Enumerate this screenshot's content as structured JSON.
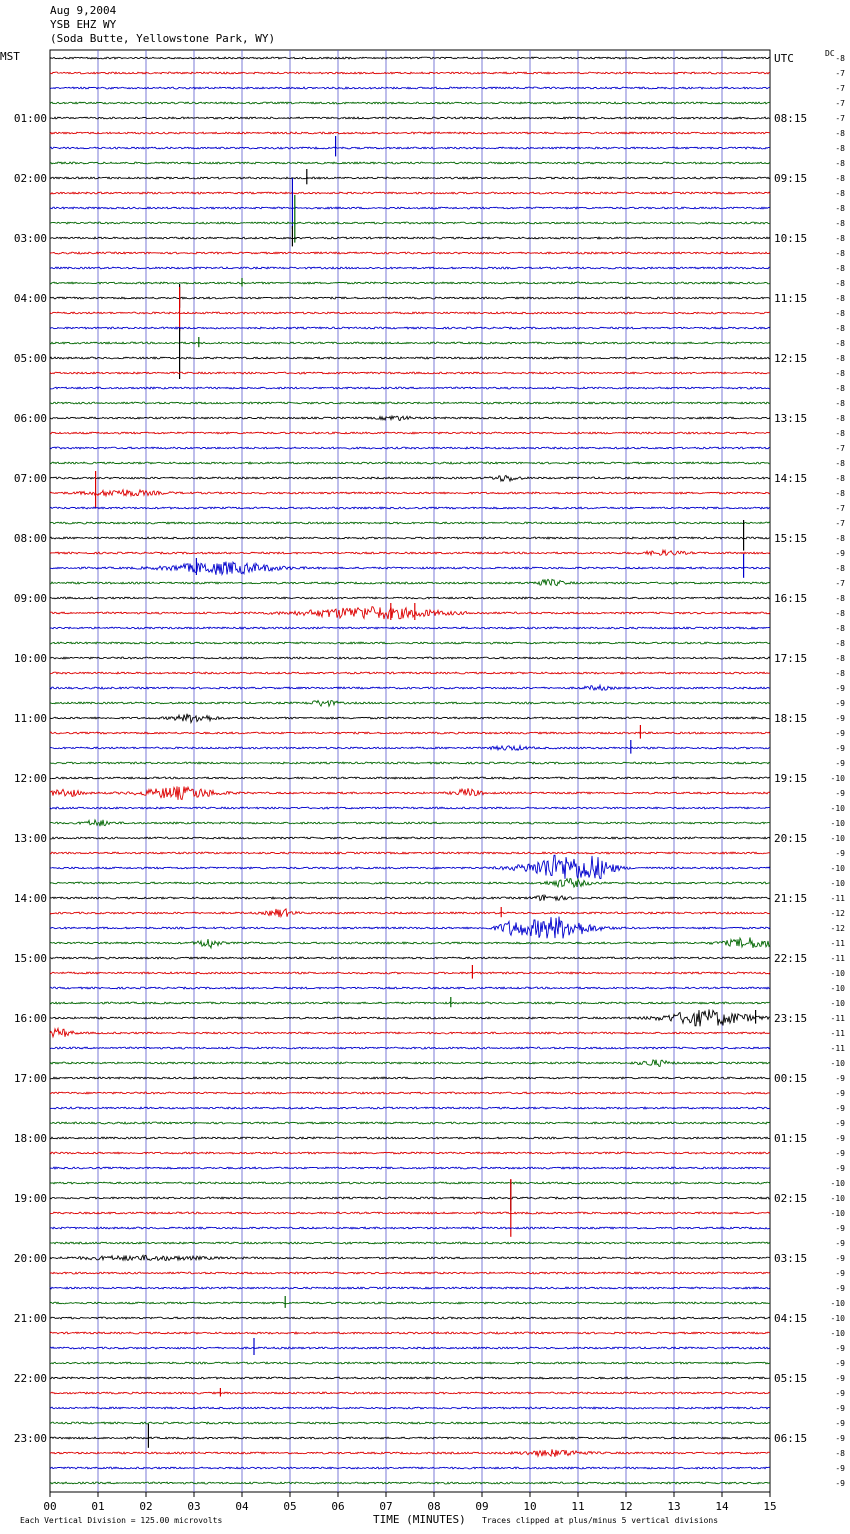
{
  "header": {
    "date": "Aug 9,2004",
    "station": "YSB EHZ WY",
    "location": "(Soda Butte, Yellowstone Park, WY)"
  },
  "left_timezone": "MST",
  "right_timezone": "UTC",
  "dc_label": "DC",
  "footer": {
    "division_note": "Each Vertical Division =  125.00 microvolts",
    "x_title": "TIME (MINUTES)",
    "clip_note": "Traces clipped at plus/minus 5 vertical divisions"
  },
  "colors": {
    "trace_cycle": [
      "#000000",
      "#dd0000",
      "#0000cc",
      "#006600"
    ],
    "grid": "#5a5acd"
  },
  "chart_data": {
    "type": "line",
    "title": "YSB EHZ WY",
    "subtitle": "(Soda Butte, Yellowstone Park, WY)",
    "xlabel": "TIME (MINUTES)",
    "xlim": [
      0,
      15
    ],
    "x_ticks": [
      "00",
      "01",
      "02",
      "03",
      "04",
      "05",
      "06",
      "07",
      "08",
      "09",
      "10",
      "11",
      "12",
      "13",
      "14",
      "15"
    ],
    "traces_per_hour": 4,
    "minutes_per_trace": 15,
    "hour_labels_left": [
      "01:00",
      "02:00",
      "03:00",
      "04:00",
      "05:00",
      "06:00",
      "07:00",
      "08:00",
      "09:00",
      "10:00",
      "11:00",
      "12:00",
      "13:00",
      "14:00",
      "15:00",
      "16:00",
      "17:00",
      "18:00",
      "19:00",
      "20:00",
      "21:00",
      "22:00",
      "23:00"
    ],
    "hour_labels_right": [
      "UTC",
      "08:15",
      "09:15",
      "10:15",
      "11:15",
      "12:15",
      "13:15",
      "14:15",
      "15:15",
      "16:15",
      "17:15",
      "18:15",
      "19:15",
      "20:15",
      "21:15",
      "22:15",
      "23:15",
      "00:15",
      "01:15",
      "02:15",
      "03:15",
      "04:15",
      "05:15",
      "06:15"
    ],
    "dc_offsets": [
      -8,
      -7,
      -7,
      -7,
      -7,
      -8,
      -8,
      -8,
      -8,
      -8,
      -8,
      -8,
      -8,
      -8,
      -8,
      -8,
      -8,
      -8,
      -8,
      -8,
      -8,
      -8,
      -8,
      -8,
      -8,
      -8,
      -7,
      -8,
      -8,
      -8,
      -7,
      -7,
      -8,
      -9,
      -8,
      -7,
      -8,
      -8,
      -8,
      -8,
      -8,
      -8,
      -9,
      -9,
      -9,
      -9,
      -9,
      -9,
      -10,
      -9,
      -10,
      -10,
      -10,
      -9,
      -10,
      -10,
      -11,
      -12,
      -12,
      -11,
      -11,
      -10,
      -10,
      -10,
      -11,
      -11,
      -11,
      -10,
      -9,
      -9,
      -9,
      -9,
      -9,
      -9,
      -9,
      -10,
      -10,
      -10,
      -9,
      -9,
      -9,
      -9,
      -9,
      -10,
      -10,
      -10,
      -9,
      -9,
      -9,
      -9,
      -9,
      -9,
      -9,
      -8,
      -9,
      -9
    ],
    "events": [
      {
        "trace": 6,
        "minute": 5.95,
        "amp": 12,
        "kind": "spike"
      },
      {
        "trace": 8,
        "minute": 5.35,
        "amp": 9,
        "kind": "spike"
      },
      {
        "trace": 10,
        "minute": 5.05,
        "amp": 30,
        "kind": "spike"
      },
      {
        "trace": 11,
        "minute": 5.1,
        "amp": 28,
        "kind": "spike"
      },
      {
        "trace": 12,
        "minute": 5.05,
        "amp": 12,
        "kind": "spike"
      },
      {
        "trace": 15,
        "minute": 4.0,
        "amp": 5,
        "kind": "spike"
      },
      {
        "trace": 16,
        "minute": 2.7,
        "amp": 14,
        "kind": "spike"
      },
      {
        "trace": 17,
        "minute": 2.7,
        "amp": 26,
        "kind": "spike"
      },
      {
        "trace": 19,
        "minute": 3.1,
        "amp": 6,
        "kind": "spike"
      },
      {
        "trace": 20,
        "minute": 2.7,
        "amp": 30,
        "kind": "spike"
      },
      {
        "trace": 24,
        "minute": 7.2,
        "amp": 2,
        "kind": "burst",
        "width": 0.6
      },
      {
        "trace": 28,
        "minute": 9.5,
        "amp": 3,
        "kind": "burst",
        "width": 0.5
      },
      {
        "trace": 29,
        "minute": 0.95,
        "amp": 22,
        "kind": "spike"
      },
      {
        "trace": 29,
        "minute": 1.5,
        "amp": 3,
        "kind": "burst",
        "width": 1.4
      },
      {
        "trace": 32,
        "minute": 14.45,
        "amp": 18,
        "kind": "spike"
      },
      {
        "trace": 33,
        "minute": 12.8,
        "amp": 2,
        "kind": "burst",
        "width": 0.8
      },
      {
        "trace": 34,
        "minute": 3.6,
        "amp": 6,
        "kind": "burst",
        "width": 2.0
      },
      {
        "trace": 34,
        "minute": 3.05,
        "amp": 10,
        "kind": "spike"
      },
      {
        "trace": 34,
        "minute": 14.45,
        "amp": 14,
        "kind": "spike"
      },
      {
        "trace": 35,
        "minute": 10.4,
        "amp": 3,
        "kind": "burst",
        "width": 0.6
      },
      {
        "trace": 37,
        "minute": 6.7,
        "amp": 6,
        "kind": "burst",
        "width": 2.6
      },
      {
        "trace": 37,
        "minute": 7.1,
        "amp": 10,
        "kind": "spike"
      },
      {
        "trace": 37,
        "minute": 7.6,
        "amp": 10,
        "kind": "spike"
      },
      {
        "trace": 42,
        "minute": 11.4,
        "amp": 2,
        "kind": "burst",
        "width": 0.5
      },
      {
        "trace": 43,
        "minute": 5.7,
        "amp": 3,
        "kind": "burst",
        "width": 0.5
      },
      {
        "trace": 44,
        "minute": 3.0,
        "amp": 4,
        "kind": "burst",
        "width": 0.8
      },
      {
        "trace": 45,
        "minute": 12.3,
        "amp": 8,
        "kind": "spike"
      },
      {
        "trace": 46,
        "minute": 9.6,
        "amp": 2,
        "kind": "burst",
        "width": 0.7
      },
      {
        "trace": 46,
        "minute": 12.1,
        "amp": 8,
        "kind": "spike"
      },
      {
        "trace": 49,
        "minute": 0.3,
        "amp": 4,
        "kind": "burst",
        "width": 0.6
      },
      {
        "trace": 49,
        "minute": 2.7,
        "amp": 6,
        "kind": "burst",
        "width": 1.4
      },
      {
        "trace": 49,
        "minute": 8.7,
        "amp": 4,
        "kind": "burst",
        "width": 0.5
      },
      {
        "trace": 51,
        "minute": 1.0,
        "amp": 3,
        "kind": "burst",
        "width": 0.5
      },
      {
        "trace": 54,
        "minute": 10.2,
        "amp": 4,
        "kind": "burst",
        "width": 1.2
      },
      {
        "trace": 54,
        "minute": 10.6,
        "amp": 10,
        "kind": "burst",
        "width": 0.8
      },
      {
        "trace": 54,
        "minute": 11.3,
        "amp": 12,
        "kind": "burst",
        "width": 0.8
      },
      {
        "trace": 55,
        "minute": 10.8,
        "amp": 4,
        "kind": "burst",
        "width": 0.8
      },
      {
        "trace": 56,
        "minute": 10.4,
        "amp": 3,
        "kind": "burst",
        "width": 0.6
      },
      {
        "trace": 57,
        "minute": 4.8,
        "amp": 4,
        "kind": "burst",
        "width": 0.5
      },
      {
        "trace": 57,
        "minute": 9.4,
        "amp": 6,
        "kind": "spike"
      },
      {
        "trace": 58,
        "minute": 9.6,
        "amp": 5,
        "kind": "burst",
        "width": 0.5
      },
      {
        "trace": 58,
        "minute": 10.5,
        "amp": 11,
        "kind": "burst",
        "width": 1.4
      },
      {
        "trace": 59,
        "minute": 3.3,
        "amp": 5,
        "kind": "burst",
        "width": 0.4
      },
      {
        "trace": 59,
        "minute": 14.6,
        "amp": 5,
        "kind": "burst",
        "width": 1.0
      },
      {
        "trace": 61,
        "minute": 8.8,
        "amp": 8,
        "kind": "spike"
      },
      {
        "trace": 63,
        "minute": 8.35,
        "amp": 6,
        "kind": "spike"
      },
      {
        "trace": 64,
        "minute": 13.7,
        "amp": 8,
        "kind": "burst",
        "width": 1.6
      },
      {
        "trace": 64,
        "minute": 14.7,
        "amp": 8,
        "kind": "spike"
      },
      {
        "trace": 65,
        "minute": 0.2,
        "amp": 4,
        "kind": "burst",
        "width": 0.5
      },
      {
        "trace": 67,
        "minute": 12.6,
        "amp": 3,
        "kind": "burst",
        "width": 0.6
      },
      {
        "trace": 76,
        "minute": 9.6,
        "amp": 18,
        "kind": "spike"
      },
      {
        "trace": 77,
        "minute": 9.6,
        "amp": 34,
        "kind": "spike"
      },
      {
        "trace": 80,
        "minute": 2.0,
        "amp": 2,
        "kind": "burst",
        "width": 2.5
      },
      {
        "trace": 83,
        "minute": 4.9,
        "amp": 7,
        "kind": "spike"
      },
      {
        "trace": 86,
        "minute": 4.25,
        "amp": 10,
        "kind": "spike"
      },
      {
        "trace": 89,
        "minute": 3.55,
        "amp": 5,
        "kind": "spike"
      },
      {
        "trace": 92,
        "minute": 2.05,
        "amp": 14,
        "kind": "spike"
      },
      {
        "trace": 93,
        "minute": 10.5,
        "amp": 3,
        "kind": "burst",
        "width": 1.2
      }
    ]
  }
}
